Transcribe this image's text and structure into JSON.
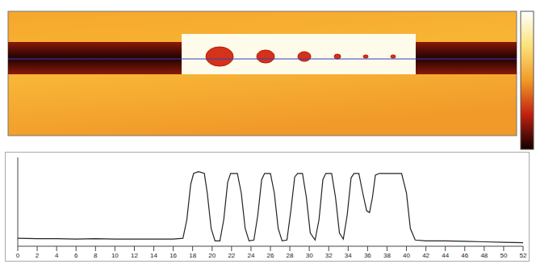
{
  "chart_data": {
    "type": "line",
    "x": [
      0,
      2,
      4,
      6,
      8,
      10,
      12,
      14,
      16,
      17,
      17.4,
      17.8,
      18.1,
      18.6,
      19.2,
      19.5,
      19.9,
      20.3,
      20.8,
      21.2,
      21.6,
      21.9,
      22.6,
      23,
      23.4,
      23.8,
      24.3,
      24.7,
      25.1,
      25.4,
      26,
      26.4,
      26.8,
      27.2,
      27.7,
      28.1,
      28.5,
      28.8,
      29.3,
      29.7,
      30.1,
      30.6,
      31,
      31.4,
      31.7,
      32.3,
      32.7,
      33.1,
      33.5,
      33.9,
      34.3,
      34.6,
      35.1,
      35.5,
      35.9,
      36.2,
      36.5,
      36.8,
      37.2,
      39.5,
      40,
      40.4,
      40.9,
      42,
      44,
      46,
      48,
      50,
      52
    ],
    "values": [
      0.09,
      0.085,
      0.085,
      0.08,
      0.085,
      0.08,
      0.08,
      0.08,
      0.08,
      0.09,
      0.3,
      0.7,
      0.82,
      0.84,
      0.82,
      0.6,
      0.2,
      0.06,
      0.06,
      0.3,
      0.72,
      0.82,
      0.82,
      0.6,
      0.2,
      0.06,
      0.07,
      0.35,
      0.75,
      0.82,
      0.82,
      0.6,
      0.2,
      0.06,
      0.07,
      0.4,
      0.78,
      0.82,
      0.82,
      0.55,
      0.15,
      0.07,
      0.3,
      0.75,
      0.82,
      0.82,
      0.55,
      0.15,
      0.08,
      0.35,
      0.77,
      0.82,
      0.82,
      0.6,
      0.4,
      0.38,
      0.55,
      0.8,
      0.82,
      0.82,
      0.6,
      0.2,
      0.07,
      0.06,
      0.06,
      0.055,
      0.05,
      0.045,
      0.04
    ],
    "color": "#222222",
    "xlim": [
      0,
      52
    ],
    "xticks": [
      0,
      2,
      4,
      6,
      8,
      10,
      12,
      14,
      16,
      18,
      20,
      22,
      24,
      26,
      28,
      30,
      32,
      34,
      36,
      38,
      40,
      42,
      44,
      46,
      48,
      50,
      52
    ],
    "ylim": [
      0,
      1
    ],
    "tick_labels": "x",
    "grid": false
  }
}
